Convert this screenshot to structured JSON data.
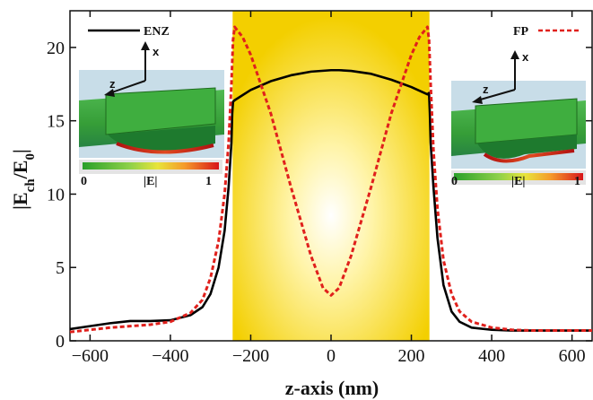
{
  "chart_data": {
    "type": "line",
    "xlabel": "z-axis (nm)",
    "ylabel": "|E",
    "ylabel_sub1": "ch",
    "ylabel_mid": "/E",
    "ylabel_sub2": "0",
    "ylabel_end": "|",
    "xlim": [
      -650,
      650
    ],
    "ylim": [
      0,
      22.5
    ],
    "xticks": [
      -600,
      -400,
      -200,
      0,
      200,
      400,
      600
    ],
    "xtick_labels": [
      "−600",
      "−400",
      "−200",
      "0",
      "200",
      "400",
      "600"
    ],
    "yticks": [
      0,
      5,
      10,
      15,
      20
    ],
    "ytick_labels": [
      "0",
      "5",
      "10",
      "15",
      "20"
    ],
    "grid": false,
    "highlight_region": {
      "x_start": -245,
      "x_end": 245,
      "color_center": "#ffffff",
      "color_edge": "#f3cf00"
    },
    "series": [
      {
        "name": "ENZ",
        "color": "#000000",
        "style": "solid",
        "x": [
          -650,
          -600,
          -550,
          -500,
          -450,
          -400,
          -350,
          -320,
          -300,
          -280,
          -265,
          -255,
          -248,
          -246,
          -244,
          -240,
          -200,
          -150,
          -100,
          -50,
          0,
          20,
          50,
          100,
          150,
          200,
          240,
          244,
          246,
          248,
          255,
          265,
          280,
          300,
          320,
          350,
          400,
          450,
          500,
          550,
          600,
          650
        ],
        "y": [
          0.8,
          1.0,
          1.2,
          1.35,
          1.35,
          1.4,
          1.75,
          2.3,
          3.2,
          5.0,
          7.5,
          10.5,
          13.5,
          15.5,
          16.3,
          16.4,
          17.1,
          17.7,
          18.1,
          18.35,
          18.45,
          18.45,
          18.4,
          18.2,
          17.8,
          17.3,
          16.8,
          16.9,
          15.5,
          13.5,
          10.5,
          7.0,
          3.8,
          2.0,
          1.3,
          0.9,
          0.75,
          0.7,
          0.7,
          0.7,
          0.7,
          0.7
        ]
      },
      {
        "name": "FP",
        "color": "#e0201c",
        "style": "dashed",
        "x": [
          -650,
          -600,
          -550,
          -500,
          -450,
          -400,
          -350,
          -320,
          -300,
          -280,
          -265,
          -255,
          -248,
          -244,
          -240,
          -220,
          -200,
          -150,
          -100,
          -50,
          -20,
          0,
          20,
          50,
          100,
          150,
          200,
          220,
          240,
          244,
          248,
          255,
          265,
          280,
          300,
          320,
          350,
          400,
          450,
          500,
          550,
          600,
          650
        ],
        "y": [
          0.6,
          0.75,
          0.9,
          1.0,
          1.1,
          1.3,
          1.9,
          2.8,
          4.3,
          6.8,
          10.0,
          13.5,
          17.5,
          20.5,
          21.4,
          20.7,
          19.5,
          15.5,
          10.5,
          5.8,
          3.6,
          3.1,
          3.6,
          5.8,
          10.5,
          15.5,
          19.5,
          20.7,
          21.4,
          20.5,
          17.5,
          13.0,
          9.0,
          5.5,
          3.2,
          2.0,
          1.3,
          0.9,
          0.75,
          0.7,
          0.7,
          0.7,
          0.7
        ]
      }
    ],
    "legend": [
      {
        "label": "ENZ",
        "placement": "top-left"
      },
      {
        "label": "FP",
        "placement": "top-right"
      }
    ],
    "insets": [
      {
        "placement": "left",
        "axis_x": "x",
        "axis_z": "z",
        "scale_min": "0",
        "scale_mid": "|E|",
        "scale_max": "1"
      },
      {
        "placement": "right",
        "axis_x": "x",
        "axis_z": "z",
        "scale_min": "0",
        "scale_mid": "|E|",
        "scale_max": "1"
      }
    ]
  }
}
